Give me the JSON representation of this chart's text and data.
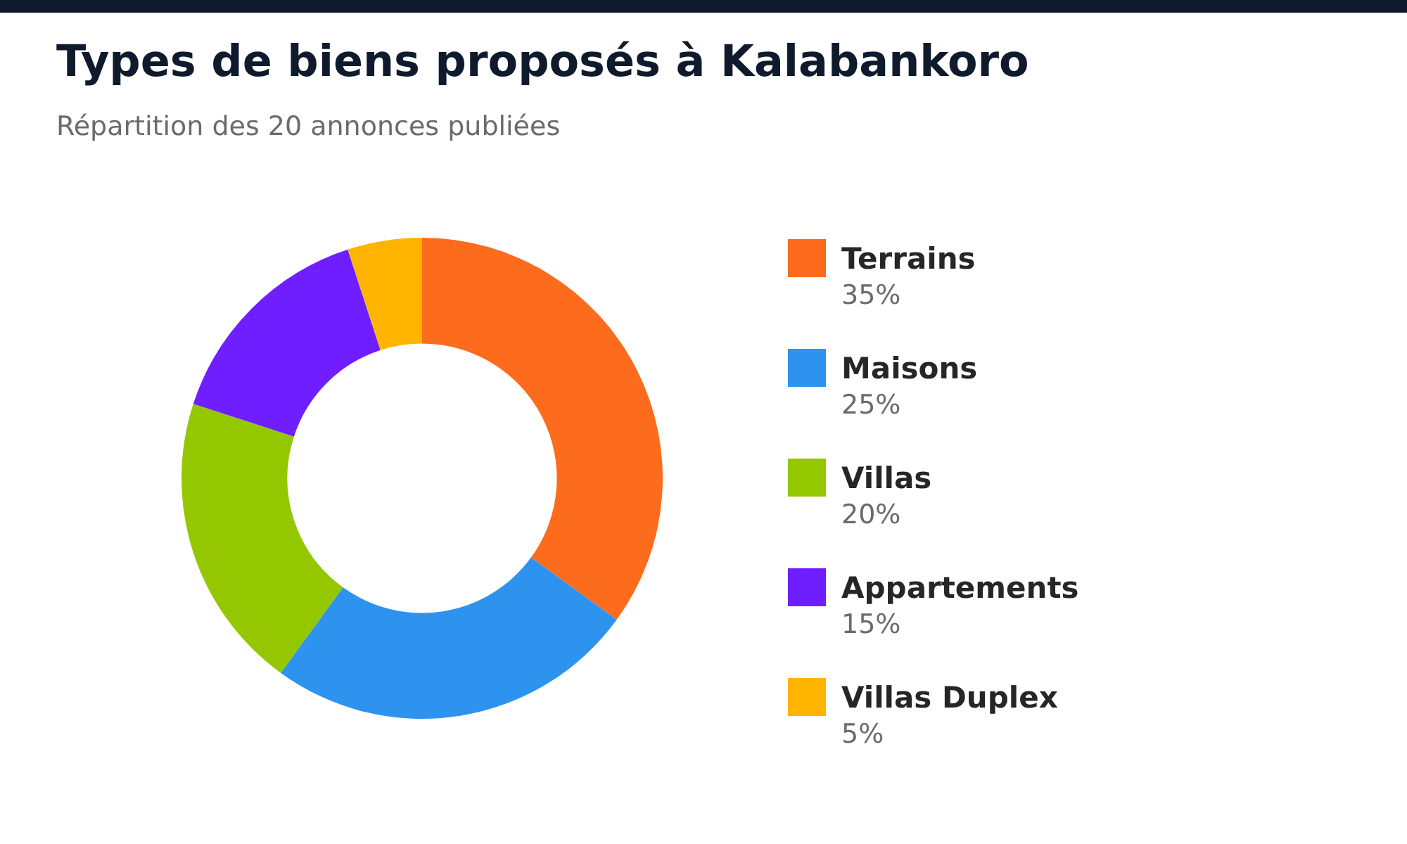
{
  "chart_data": {
    "type": "donut",
    "title": "Types de biens proposés à Kalabankoro",
    "subtitle": "Répartition des 20 annonces publiées",
    "categories": [
      "Terrains",
      "Maisons",
      "Villas",
      "Appartements",
      "Villas Duplex"
    ],
    "values": [
      35,
      25,
      20,
      15,
      5
    ],
    "colors": [
      "#fd6b1c",
      "#2e93ee",
      "#94c700",
      "#6f1fff",
      "#ffb400"
    ],
    "value_labels": [
      "35%",
      "25%",
      "20%",
      "15%",
      "5%"
    ],
    "legend": "right"
  }
}
